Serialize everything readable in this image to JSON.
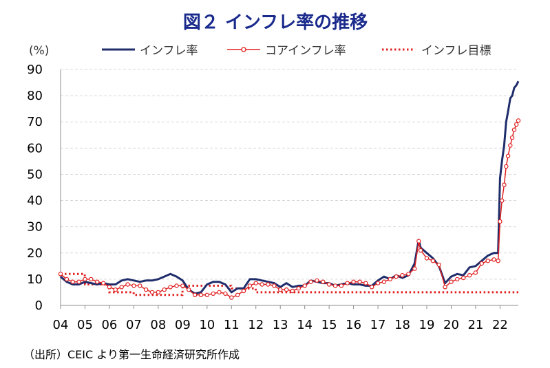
{
  "chart_data": {
    "type": "line",
    "title": "図２ インフレ率の推移",
    "unit_label": "(%)",
    "source": "（出所）CEIC より第一生命経済研究所作成",
    "ylim": [
      0,
      90
    ],
    "yticks": [
      0,
      10,
      20,
      30,
      40,
      50,
      60,
      70,
      80,
      90
    ],
    "x_tick_labels": [
      "04",
      "05",
      "06",
      "07",
      "08",
      "09",
      "10",
      "11",
      "12",
      "13",
      "14",
      "15",
      "16",
      "17",
      "18",
      "19",
      "20",
      "21",
      "22"
    ],
    "grid": true,
    "legend_position": "top",
    "colors": {
      "title": "#1a2a8c",
      "inflation": "#1f2d6b",
      "core": "#e02020",
      "target": "#e02020"
    },
    "series": [
      {
        "name": "インフレ率",
        "style": "line",
        "x": [
          2004.0,
          2004.25,
          2004.5,
          2004.75,
          2005.0,
          2005.25,
          2005.5,
          2005.75,
          2006.0,
          2006.25,
          2006.5,
          2006.75,
          2007.0,
          2007.25,
          2007.5,
          2007.75,
          2008.0,
          2008.25,
          2008.5,
          2008.75,
          2009.0,
          2009.25,
          2009.5,
          2009.75,
          2010.0,
          2010.25,
          2010.5,
          2010.75,
          2011.0,
          2011.25,
          2011.5,
          2011.75,
          2012.0,
          2012.25,
          2012.5,
          2012.75,
          2013.0,
          2013.25,
          2013.5,
          2013.75,
          2014.0,
          2014.25,
          2014.5,
          2014.75,
          2015.0,
          2015.25,
          2015.5,
          2015.75,
          2016.0,
          2016.25,
          2016.5,
          2016.75,
          2017.0,
          2017.25,
          2017.5,
          2017.75,
          2018.0,
          2018.25,
          2018.5,
          2018.67,
          2018.75,
          2019.0,
          2019.25,
          2019.5,
          2019.75,
          2020.0,
          2020.25,
          2020.5,
          2020.75,
          2021.0,
          2021.25,
          2021.5,
          2021.75,
          2021.92,
          2022.0,
          2022.08,
          2022.17,
          2022.25,
          2022.33,
          2022.42,
          2022.5,
          2022.58,
          2022.67,
          2022.75
        ],
        "values": [
          11,
          9,
          8,
          8,
          9,
          8.5,
          8,
          8.5,
          8,
          8,
          9.5,
          10,
          9.5,
          9,
          9.5,
          9.5,
          10,
          11,
          12,
          11,
          9.5,
          6,
          4.5,
          5,
          8,
          9,
          9,
          8,
          5,
          6.5,
          6.5,
          10,
          10,
          9.5,
          9,
          8.5,
          7,
          8.5,
          7,
          7.5,
          7.5,
          9.5,
          9,
          8.5,
          8.5,
          7.5,
          8,
          8.5,
          8,
          8,
          7.5,
          7.5,
          9.5,
          11,
          10,
          11.5,
          10.5,
          11.5,
          16,
          25,
          22,
          20,
          18,
          15,
          8.5,
          11,
          12,
          11.5,
          14.5,
          15,
          17,
          19,
          20,
          20,
          48.5,
          55,
          61,
          70,
          74,
          79,
          80,
          83,
          84,
          85.5
        ]
      },
      {
        "name": "コアインフレ率",
        "style": "line-marker",
        "x": [
          2004.0,
          2004.25,
          2004.5,
          2004.75,
          2005.0,
          2005.25,
          2005.5,
          2005.75,
          2006.0,
          2006.25,
          2006.5,
          2006.75,
          2007.0,
          2007.25,
          2007.5,
          2007.75,
          2008.0,
          2008.25,
          2008.5,
          2008.75,
          2009.0,
          2009.25,
          2009.5,
          2009.75,
          2010.0,
          2010.25,
          2010.5,
          2010.75,
          2011.0,
          2011.25,
          2011.5,
          2011.75,
          2012.0,
          2012.25,
          2012.5,
          2012.75,
          2013.0,
          2013.25,
          2013.5,
          2013.75,
          2014.0,
          2014.25,
          2014.5,
          2014.75,
          2015.0,
          2015.25,
          2015.5,
          2015.75,
          2016.0,
          2016.25,
          2016.5,
          2016.75,
          2017.0,
          2017.25,
          2017.5,
          2017.75,
          2018.0,
          2018.25,
          2018.5,
          2018.67,
          2018.75,
          2019.0,
          2019.25,
          2019.5,
          2019.75,
          2020.0,
          2020.25,
          2020.5,
          2020.75,
          2021.0,
          2021.25,
          2021.5,
          2021.75,
          2021.92,
          2022.0,
          2022.08,
          2022.17,
          2022.25,
          2022.33,
          2022.42,
          2022.5,
          2022.58,
          2022.67,
          2022.75
        ],
        "values": [
          12,
          10,
          9,
          9,
          10,
          10,
          9,
          8.5,
          7,
          6,
          7,
          8,
          7.5,
          7.5,
          6,
          5,
          5,
          6,
          7,
          7.5,
          7.5,
          6,
          4,
          4,
          4,
          4.5,
          5,
          4.5,
          3,
          4,
          5.5,
          7.5,
          8.5,
          8,
          8,
          7.5,
          6,
          6,
          5.5,
          6.5,
          7.5,
          9,
          9.5,
          9,
          8,
          7.5,
          7.5,
          8.5,
          9,
          9,
          8.5,
          7,
          8.5,
          9,
          10,
          11,
          11.5,
          12,
          14,
          24.5,
          21,
          18,
          17,
          15.5,
          7,
          9,
          10,
          10.5,
          11.5,
          12.5,
          16,
          17,
          17.5,
          17,
          32,
          40,
          46,
          53,
          57,
          61,
          64,
          67,
          69,
          70.5
        ]
      },
      {
        "name": "インフレ目標",
        "style": "dotted",
        "x": [
          2004.0,
          2004.99,
          2005.0,
          2005.99,
          2006.0,
          2006.99,
          2007.0,
          2008.99,
          2009.0,
          2010.99,
          2011.0,
          2011.99,
          2012.0,
          2022.75
        ],
        "values": [
          12,
          12,
          8,
          8,
          5,
          5,
          4,
          4,
          7.5,
          7.5,
          6.5,
          6.5,
          5,
          5
        ]
      }
    ]
  }
}
